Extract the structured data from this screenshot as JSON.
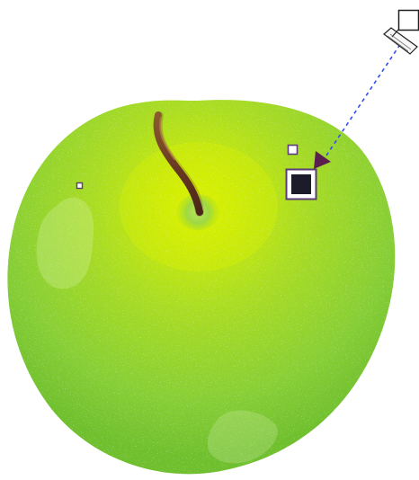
{
  "canvas": {
    "background": "#ffffff"
  },
  "artwork": {
    "subject": "green-apple",
    "colors": {
      "body_light": "#d8ef00",
      "body_mid": "#9ed32a",
      "body_dark": "#6fbf2e",
      "stem_dark": "#5b2f1d",
      "stem_light": "#8a5a2e"
    }
  },
  "tool": {
    "type": "interactive-gradient-fill",
    "handle_color": "#5b3b7a",
    "handle_fill": "#1b1b2a",
    "vector_color": "#2f4df2"
  }
}
